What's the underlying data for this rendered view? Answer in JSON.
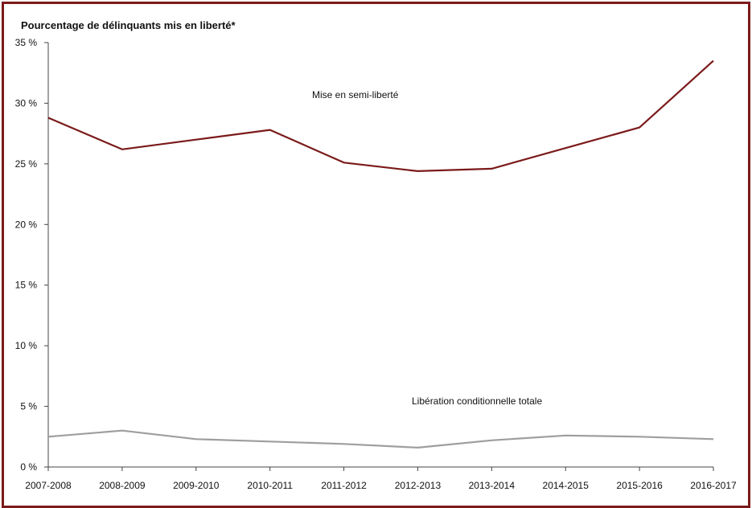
{
  "chart_data": {
    "type": "line",
    "title": "",
    "ylabel": "Pourcentage de délinquants mis en liberté*",
    "xlabel": "",
    "ylim": [
      0,
      35
    ],
    "ytick_values": [
      0,
      5,
      10,
      15,
      20,
      25,
      30,
      35
    ],
    "ytick_labels": [
      "0 %",
      "5 %",
      "10 %",
      "15 %",
      "20 %",
      "25 %",
      "30 %",
      "35 %"
    ],
    "categories": [
      "2007-2008",
      "2008-2009",
      "2009-2010",
      "2010-2011",
      "2011-2012",
      "2012-2013",
      "2013-2014",
      "2014-2015",
      "2015-2016",
      "2016-2017"
    ],
    "series": [
      {
        "name": "Mise en semi-liberté",
        "color": "#7b1a1a",
        "values": [
          28.8,
          26.2,
          27.0,
          27.8,
          25.1,
          24.4,
          24.6,
          26.3,
          28.0,
          33.5
        ]
      },
      {
        "name": "Libération conditionnelle totale",
        "color": "#9e9e9e",
        "values": [
          2.5,
          3.0,
          2.3,
          2.1,
          1.9,
          1.6,
          2.2,
          2.6,
          2.5,
          2.3
        ]
      }
    ],
    "grid": false,
    "legend": "inline labels"
  }
}
